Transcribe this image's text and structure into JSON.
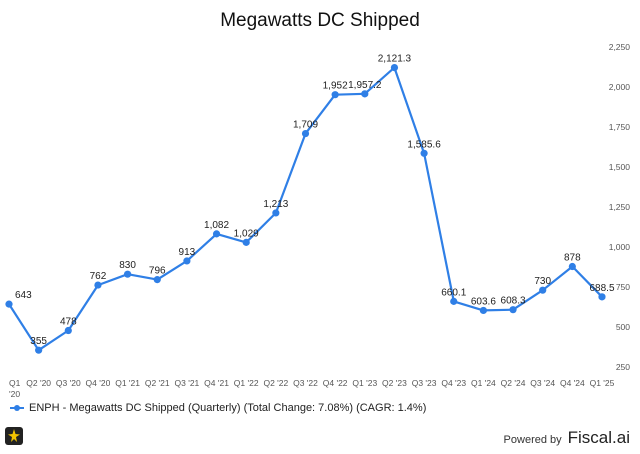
{
  "chart_data": {
    "type": "line",
    "title": "Megawatts DC Shipped",
    "categories": [
      "Q1 '20",
      "Q2 '20",
      "Q3 '20",
      "Q4 '20",
      "Q1 '21",
      "Q2 '21",
      "Q3 '21",
      "Q4 '21",
      "Q1 '22",
      "Q2 '22",
      "Q3 '22",
      "Q4 '22",
      "Q1 '23",
      "Q2 '23",
      "Q3 '23",
      "Q4 '23",
      "Q1 '24",
      "Q2 '24",
      "Q3 '24",
      "Q4 '24",
      "Q1 '25"
    ],
    "series": [
      {
        "name": "ENPH - Megawatts DC Shipped (Quarterly) (Total Change: 7.08%) (CAGR: 1.4%)",
        "values": [
          643,
          355,
          478,
          762,
          830,
          796,
          913,
          1082,
          1029,
          1213,
          1709,
          1952,
          1957.2,
          2121.3,
          1585.6,
          660.1,
          603.6,
          608.3,
          730,
          878,
          688.5
        ],
        "labels": [
          "643",
          "355",
          "478",
          "762",
          "830",
          "796",
          "913",
          "1,082",
          "1,029",
          "1,213",
          "1,709",
          "1,952",
          "1,957.2",
          "2,121.3",
          "1,585.6",
          "660.1",
          "603.6",
          "608.3",
          "730",
          "878",
          "688.5"
        ]
      }
    ],
    "y_ticks": [
      "250",
      "500",
      "750",
      "1,000",
      "1,250",
      "1,500",
      "1,750",
      "2,000",
      "2,250"
    ],
    "y_tick_values": [
      250,
      500,
      750,
      1000,
      1250,
      1500,
      1750,
      2000,
      2250
    ],
    "ylim": [
      250,
      2250
    ],
    "y_axis_side": "right",
    "grid": false,
    "legend": "bottom-left",
    "line_color": "#2f7fe6"
  },
  "footer": {
    "powered_by": "Powered by",
    "brand": "Fiscal.ai"
  }
}
